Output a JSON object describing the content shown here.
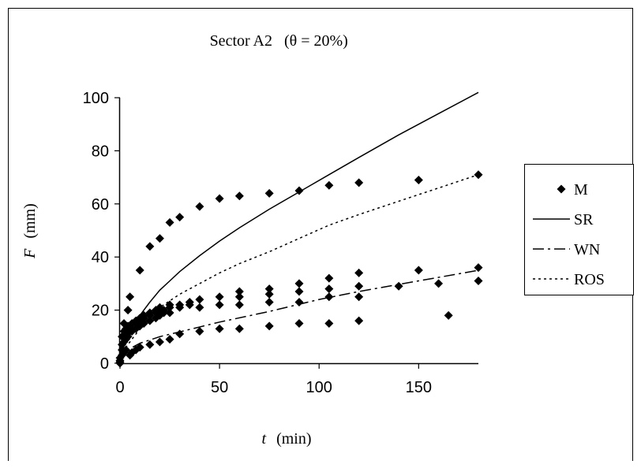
{
  "chart_data": {
    "type": "scatter",
    "title": {
      "main": "Sector A2",
      "condition": "(θ = 20%)"
    },
    "xlabel": {
      "var": "t",
      "unit": "(min)"
    },
    "ylabel": {
      "var": "F",
      "unit": "(mm)"
    },
    "xlim": [
      0,
      180
    ],
    "ylim": [
      0,
      100
    ],
    "xticks": [
      0,
      50,
      100,
      150
    ],
    "yticks": [
      0,
      20,
      40,
      60,
      80,
      100
    ],
    "grid": false,
    "legend_position": "right",
    "series": [
      {
        "name": "M",
        "kind": "markers",
        "color": "#000000",
        "points": [
          [
            0,
            0
          ],
          [
            0,
            0.5
          ],
          [
            0,
            1
          ],
          [
            0,
            2
          ],
          [
            1,
            5
          ],
          [
            1,
            7
          ],
          [
            1,
            10
          ],
          [
            1,
            3
          ],
          [
            2,
            8
          ],
          [
            2,
            10
          ],
          [
            2,
            12
          ],
          [
            2,
            15
          ],
          [
            2,
            4
          ],
          [
            3,
            9
          ],
          [
            3,
            11
          ],
          [
            3,
            13
          ],
          [
            3,
            5
          ],
          [
            4,
            20
          ],
          [
            4,
            10
          ],
          [
            4,
            12
          ],
          [
            4,
            14
          ],
          [
            5,
            25
          ],
          [
            5,
            12
          ],
          [
            5,
            14
          ],
          [
            5,
            3
          ],
          [
            6,
            12
          ],
          [
            6,
            13
          ],
          [
            6,
            15
          ],
          [
            6,
            4
          ],
          [
            8,
            13
          ],
          [
            8,
            15
          ],
          [
            8,
            16
          ],
          [
            8,
            5
          ],
          [
            10,
            35
          ],
          [
            10,
            14
          ],
          [
            10,
            16
          ],
          [
            10,
            17
          ],
          [
            10,
            6
          ],
          [
            12,
            15
          ],
          [
            12,
            17
          ],
          [
            12,
            18
          ],
          [
            15,
            44
          ],
          [
            15,
            16
          ],
          [
            15,
            18
          ],
          [
            15,
            19
          ],
          [
            15,
            7
          ],
          [
            18,
            17
          ],
          [
            18,
            19
          ],
          [
            18,
            20
          ],
          [
            20,
            47
          ],
          [
            20,
            18
          ],
          [
            20,
            19
          ],
          [
            20,
            21
          ],
          [
            20,
            8
          ],
          [
            22,
            19
          ],
          [
            22,
            20
          ],
          [
            25,
            53
          ],
          [
            25,
            19
          ],
          [
            25,
            21
          ],
          [
            25,
            22
          ],
          [
            25,
            9
          ],
          [
            30,
            55
          ],
          [
            30,
            21
          ],
          [
            30,
            22
          ],
          [
            30,
            11
          ],
          [
            35,
            22
          ],
          [
            35,
            23
          ],
          [
            40,
            59
          ],
          [
            40,
            21
          ],
          [
            40,
            24
          ],
          [
            40,
            12
          ],
          [
            50,
            62
          ],
          [
            50,
            22
          ],
          [
            50,
            25
          ],
          [
            50,
            13
          ],
          [
            60,
            63
          ],
          [
            60,
            22
          ],
          [
            60,
            25
          ],
          [
            60,
            27
          ],
          [
            60,
            13
          ],
          [
            75,
            64
          ],
          [
            75,
            23
          ],
          [
            75,
            26
          ],
          [
            75,
            28
          ],
          [
            75,
            14
          ],
          [
            90,
            65
          ],
          [
            90,
            23
          ],
          [
            90,
            27
          ],
          [
            90,
            30
          ],
          [
            90,
            15
          ],
          [
            105,
            67
          ],
          [
            105,
            25
          ],
          [
            105,
            28
          ],
          [
            105,
            32
          ],
          [
            105,
            15
          ],
          [
            120,
            68
          ],
          [
            120,
            25
          ],
          [
            120,
            29
          ],
          [
            120,
            34
          ],
          [
            120,
            16
          ],
          [
            140,
            29
          ],
          [
            150,
            69
          ],
          [
            150,
            35
          ],
          [
            160,
            30
          ],
          [
            165,
            18
          ],
          [
            180,
            71
          ],
          [
            180,
            31
          ],
          [
            180,
            36
          ]
        ]
      },
      {
        "name": "SR",
        "kind": "line",
        "dash": "solid",
        "color": "#000000",
        "points": [
          [
            0,
            0
          ],
          [
            1,
            4
          ],
          [
            3,
            9
          ],
          [
            5,
            12
          ],
          [
            8,
            16
          ],
          [
            10,
            18
          ],
          [
            15,
            23
          ],
          [
            20,
            27.5
          ],
          [
            25,
            31
          ],
          [
            30,
            34.5
          ],
          [
            40,
            40.5
          ],
          [
            50,
            46
          ],
          [
            60,
            51
          ],
          [
            75,
            58
          ],
          [
            90,
            64.5
          ],
          [
            105,
            71
          ],
          [
            120,
            77.5
          ],
          [
            140,
            86
          ],
          [
            160,
            94
          ],
          [
            180,
            102
          ]
        ]
      },
      {
        "name": "WN",
        "kind": "line",
        "dash": "dashdot",
        "color": "#000000",
        "points": [
          [
            0,
            0
          ],
          [
            2,
            3.5
          ],
          [
            5,
            5.5
          ],
          [
            10,
            7.5
          ],
          [
            20,
            10
          ],
          [
            30,
            11.8
          ],
          [
            50,
            15.5
          ],
          [
            75,
            19.5
          ],
          [
            100,
            24
          ],
          [
            120,
            27
          ],
          [
            150,
            31
          ],
          [
            180,
            35
          ]
        ]
      },
      {
        "name": "ROS",
        "kind": "line",
        "dash": "dotted",
        "color": "#000000",
        "points": [
          [
            0,
            0
          ],
          [
            1,
            3
          ],
          [
            3,
            6
          ],
          [
            5,
            8
          ],
          [
            10,
            13
          ],
          [
            15,
            17.5
          ],
          [
            20,
            21
          ],
          [
            30,
            26
          ],
          [
            40,
            30
          ],
          [
            50,
            34
          ],
          [
            60,
            37.5
          ],
          [
            75,
            42
          ],
          [
            90,
            47
          ],
          [
            105,
            52
          ],
          [
            120,
            56
          ],
          [
            140,
            61
          ],
          [
            160,
            66
          ],
          [
            180,
            71
          ]
        ]
      }
    ]
  }
}
